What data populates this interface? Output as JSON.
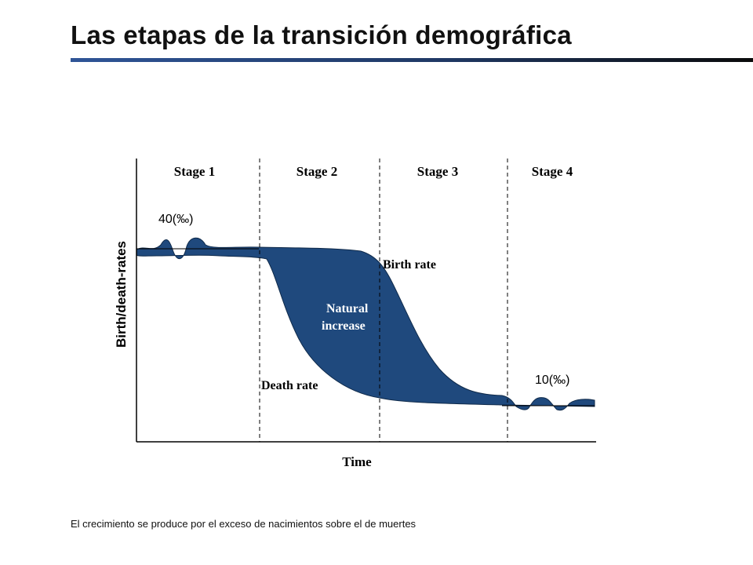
{
  "title": "Las etapas de la transición demográfica",
  "diagram": {
    "stages": [
      "Stage 1",
      "Stage 2",
      "Stage 3",
      "Stage 4"
    ],
    "y_axis_label": "Birth/death-rates",
    "x_axis_label": "Time",
    "curve_labels": {
      "birth_rate": "Birth rate",
      "death_rate": "Death rate",
      "natural_increase_line1": "Natural",
      "natural_increase_line2": "increase"
    },
    "value_labels": {
      "high": "40(‰)",
      "low": "10(‰)"
    },
    "colors": {
      "fill": "#1f497d",
      "title_rule": "#2f5597"
    }
  },
  "caption": "El crecimiento se produce por el exceso de nacimientos sobre el de muertes"
}
